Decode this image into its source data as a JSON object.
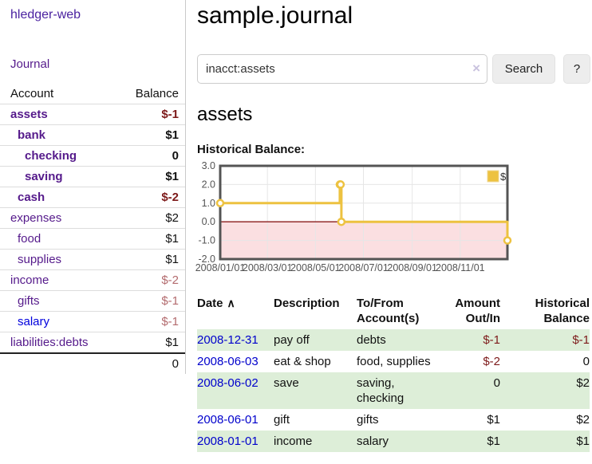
{
  "app": {
    "brand": "hledger-web"
  },
  "sidebar": {
    "nav_journal": "Journal",
    "accounts": {
      "header_account": "Account",
      "header_balance": "Balance",
      "rows": [
        {
          "name": "assets",
          "depth": 1,
          "balance": "$-1",
          "bold": true,
          "negative": "strong"
        },
        {
          "name": "bank",
          "depth": 2,
          "balance": "$1",
          "bold": true,
          "negative": "none"
        },
        {
          "name": "checking",
          "depth": 3,
          "balance": "0",
          "bold": true,
          "negative": "none"
        },
        {
          "name": "saving",
          "depth": 3,
          "balance": "$1",
          "bold": true,
          "negative": "none"
        },
        {
          "name": "cash",
          "depth": 2,
          "balance": "$-2",
          "bold": true,
          "negative": "strong"
        },
        {
          "name": "expenses",
          "depth": 1,
          "balance": "$2",
          "bold": false,
          "negative": "none"
        },
        {
          "name": "food",
          "depth": 2,
          "balance": "$1",
          "bold": false,
          "negative": "none"
        },
        {
          "name": "supplies",
          "depth": 2,
          "balance": "$1",
          "bold": false,
          "negative": "none"
        },
        {
          "name": "income",
          "depth": 1,
          "balance": "$-2",
          "bold": false,
          "negative": "muted"
        },
        {
          "name": "gifts",
          "depth": 2,
          "balance": "$-1",
          "bold": false,
          "negative": "muted"
        },
        {
          "name": "salary",
          "depth": 2,
          "balance": "$-1",
          "bold": false,
          "negative": "muted",
          "unvisited": true
        },
        {
          "name": "liabilities:debts",
          "depth": 1,
          "balance": "$1",
          "bold": false,
          "negative": "none"
        }
      ],
      "total": "0"
    }
  },
  "header": {
    "title": "sample.journal"
  },
  "search": {
    "value": "inacct:assets",
    "clear_icon": "×",
    "search_button": "Search",
    "help_button": "?"
  },
  "register": {
    "heading": "assets",
    "chart_title": "Historical Balance:",
    "table": {
      "headers": [
        {
          "lines": [
            "Date"
          ],
          "align": "left",
          "sort_icon": "∧"
        },
        {
          "lines": [
            "Description"
          ],
          "align": "left"
        },
        {
          "lines": [
            "To/From",
            "Account(s)"
          ],
          "align": "left"
        },
        {
          "lines": [
            "Amount",
            "Out/In"
          ],
          "align": "right"
        },
        {
          "lines": [
            "Historical",
            "Balance"
          ],
          "align": "right"
        }
      ],
      "rows": [
        {
          "date": "2008-12-31",
          "description": "pay off",
          "accounts": "debts",
          "amount": "$-1",
          "balance": "$-1",
          "amount_negative": true,
          "balance_negative": true
        },
        {
          "date": "2008-06-03",
          "description": "eat & shop",
          "accounts": "food, supplies",
          "amount": "$-2",
          "balance": "0",
          "amount_negative": true,
          "balance_negative": false
        },
        {
          "date": "2008-06-02",
          "description": "save",
          "accounts": "saving, checking",
          "amount": "0",
          "balance": "$2",
          "amount_negative": false,
          "balance_negative": false
        },
        {
          "date": "2008-06-01",
          "description": "gift",
          "accounts": "gifts",
          "amount": "$1",
          "balance": "$2",
          "amount_negative": false,
          "balance_negative": false
        },
        {
          "date": "2008-01-01",
          "description": "income",
          "accounts": "salary",
          "amount": "$1",
          "balance": "$1",
          "amount_negative": false,
          "balance_negative": false
        }
      ]
    }
  },
  "chart_data": {
    "type": "line",
    "step": true,
    "title": "Historical Balance",
    "series": [
      {
        "name": "$",
        "color": "#edc240",
        "points": [
          [
            "2008-01-01",
            1
          ],
          [
            "2008-06-01",
            2
          ],
          [
            "2008-06-02",
            2
          ],
          [
            "2008-06-03",
            0
          ],
          [
            "2008-12-31",
            -1
          ]
        ]
      }
    ],
    "xlim": [
      "2008-01-01",
      "2008-12-31"
    ],
    "ylim": [
      -2,
      3
    ],
    "ytick_values": [
      3,
      2,
      1,
      0,
      -1,
      -2
    ],
    "ytick_labels": [
      "3.0",
      "2.0",
      "1.0",
      "0.0",
      "-1.0",
      "-2.0"
    ],
    "xtick_values": [
      "2008-01-01",
      "2008-03-01",
      "2008-05-01",
      "2008-07-01",
      "2008-09-01",
      "2008-11-01"
    ],
    "xtick_labels": [
      "2008/01/01",
      "2008/03/01",
      "2008/05/01",
      "2008/07/01",
      "2008/09/01",
      "2008/11/01"
    ],
    "legend": {
      "position": "top-right",
      "label": "$"
    },
    "grid": true,
    "colors": {
      "grid_line": "#e6e6e6",
      "frame": "#545454",
      "tick_text": "#545454",
      "negative_fill": "#fbdfe1",
      "zero_line": "#8c1a1a",
      "marker_fill": "#ffffff"
    }
  },
  "colors": {
    "link_visited_purple": "#551a8b",
    "link_blue": "#0000cc",
    "negative_red": "#7d1a1a",
    "negative_red_muted": "#b36b6e",
    "row_stripe_green": "#ddeed8",
    "series_yellow": "#edc240"
  }
}
